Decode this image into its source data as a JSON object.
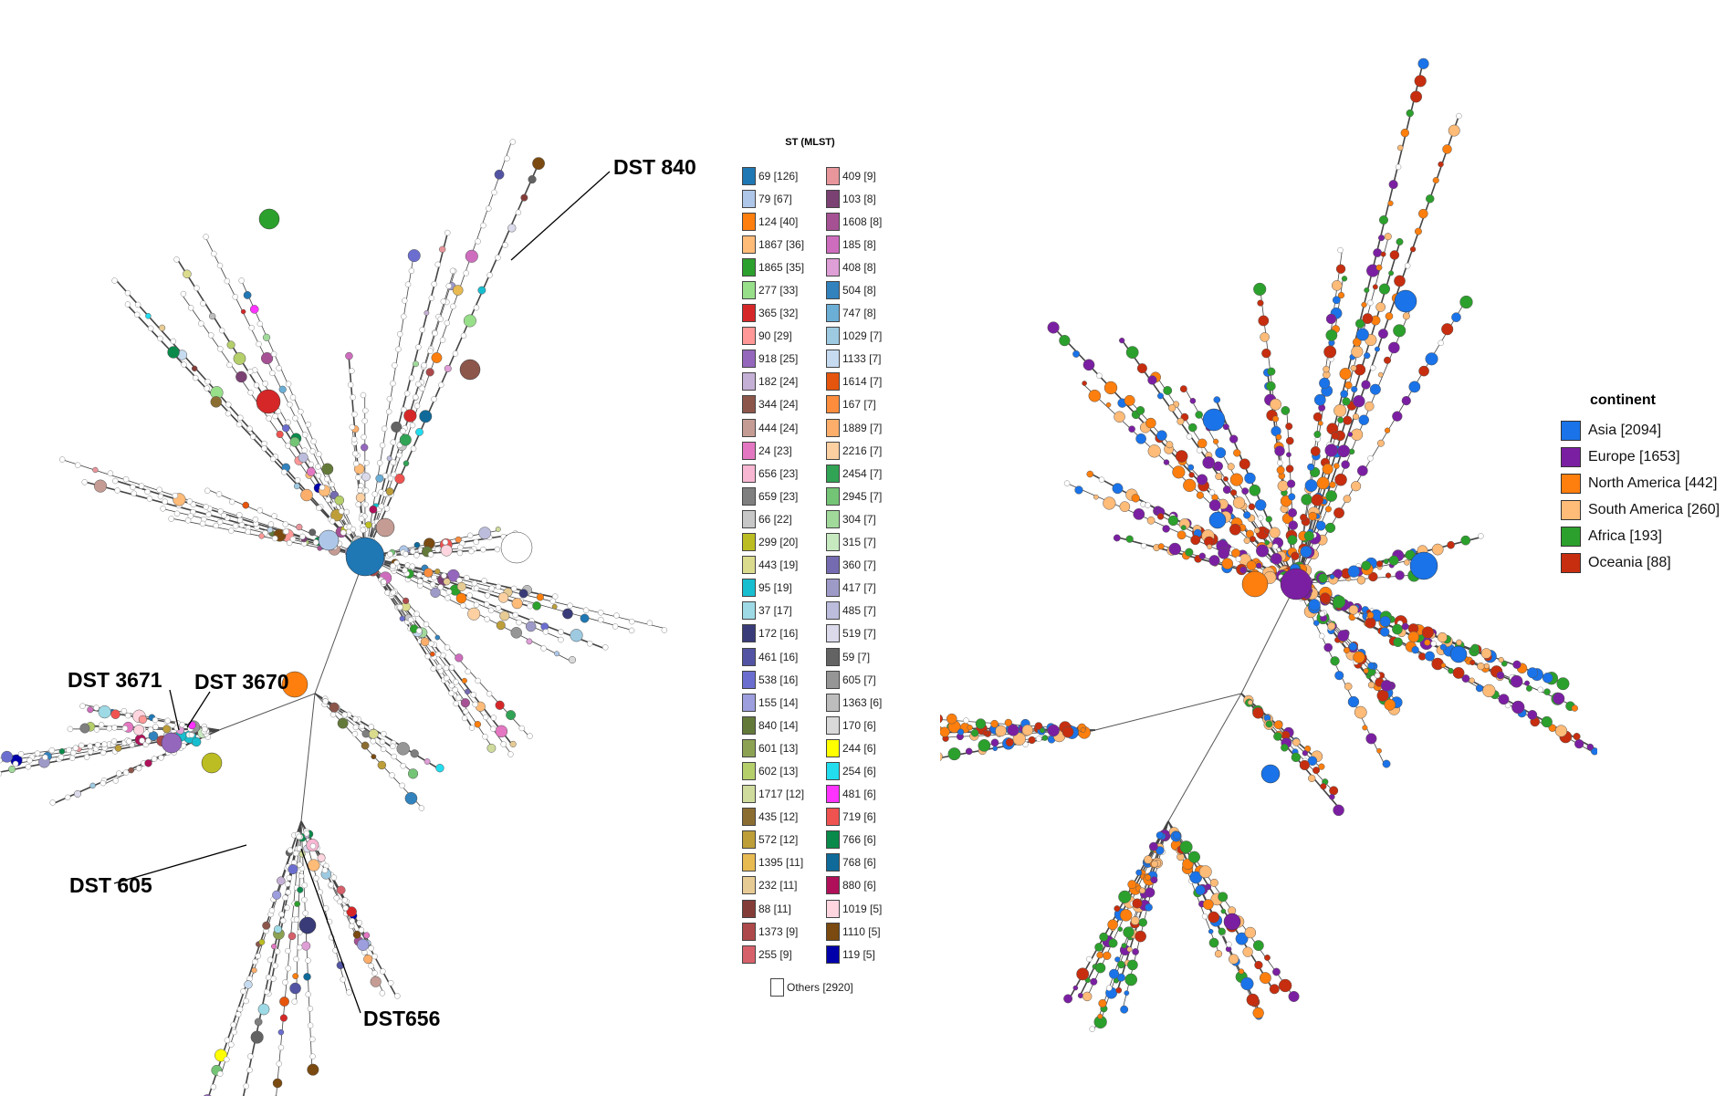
{
  "callouts": {
    "dst840": "DST 840",
    "dst3671": "DST 3671",
    "dst3670": "DST 3670",
    "dst605": "DST 605",
    "dst656": "DST656"
  },
  "st_legend": {
    "title": "ST (MLST)",
    "col1": [
      {
        "label": "69 [126]",
        "color": "#1f77b4"
      },
      {
        "label": "79 [67]",
        "color": "#aec7e8"
      },
      {
        "label": "124 [40]",
        "color": "#ff7f0e"
      },
      {
        "label": "1867 [36]",
        "color": "#ffbb78"
      },
      {
        "label": "1865 [35]",
        "color": "#2ca02c"
      },
      {
        "label": "277 [33]",
        "color": "#98df8a"
      },
      {
        "label": "365 [32]",
        "color": "#d62728"
      },
      {
        "label": "90 [29]",
        "color": "#ff9896"
      },
      {
        "label": "918 [25]",
        "color": "#9467bd"
      },
      {
        "label": "182 [24]",
        "color": "#c5b0d5"
      },
      {
        "label": "344 [24]",
        "color": "#8c564b"
      },
      {
        "label": "444 [24]",
        "color": "#c49c94"
      },
      {
        "label": "24 [23]",
        "color": "#e377c2"
      },
      {
        "label": "656 [23]",
        "color": "#f7b6d2"
      },
      {
        "label": "659 [23]",
        "color": "#7f7f7f"
      },
      {
        "label": "66 [22]",
        "color": "#c7c7c7"
      },
      {
        "label": "299 [20]",
        "color": "#bcbd22"
      },
      {
        "label": "443 [19]",
        "color": "#dbdb8d"
      },
      {
        "label": "95 [19]",
        "color": "#17becf"
      },
      {
        "label": "37 [17]",
        "color": "#9edae5"
      },
      {
        "label": "172 [16]",
        "color": "#393b79"
      },
      {
        "label": "461 [16]",
        "color": "#5254a3"
      },
      {
        "label": "538 [16]",
        "color": "#6b6ecf"
      },
      {
        "label": "155 [14]",
        "color": "#9c9ede"
      },
      {
        "label": "840 [14]",
        "color": "#637939"
      },
      {
        "label": "601 [13]",
        "color": "#8ca252"
      },
      {
        "label": "602 [13]",
        "color": "#b5cf6b"
      },
      {
        "label": "1717 [12]",
        "color": "#cedb9c"
      },
      {
        "label": "435 [12]",
        "color": "#8c6d31"
      },
      {
        "label": "572 [12]",
        "color": "#bd9e39"
      },
      {
        "label": "1395 [11]",
        "color": "#e7ba52"
      },
      {
        "label": "232 [11]",
        "color": "#e7cb94"
      },
      {
        "label": "88 [11]",
        "color": "#843c39"
      },
      {
        "label": "1373 [9]",
        "color": "#ad494a"
      },
      {
        "label": "255 [9]",
        "color": "#d6616b"
      }
    ],
    "col2": [
      {
        "label": "409 [9]",
        "color": "#e7969c"
      },
      {
        "label": "103 [8]",
        "color": "#7b4173"
      },
      {
        "label": "1608 [8]",
        "color": "#a55194"
      },
      {
        "label": "185 [8]",
        "color": "#ce6dbd"
      },
      {
        "label": "408 [8]",
        "color": "#de9ed6"
      },
      {
        "label": "504 [8]",
        "color": "#3182bd"
      },
      {
        "label": "747 [8]",
        "color": "#6baed6"
      },
      {
        "label": "1029 [7]",
        "color": "#9ecae1"
      },
      {
        "label": "1133 [7]",
        "color": "#c6dbef"
      },
      {
        "label": "1614 [7]",
        "color": "#e6550d"
      },
      {
        "label": "167 [7]",
        "color": "#fd8d3c"
      },
      {
        "label": "1889 [7]",
        "color": "#fdae6b"
      },
      {
        "label": "2216 [7]",
        "color": "#fdd0a2"
      },
      {
        "label": "2454 [7]",
        "color": "#31a354"
      },
      {
        "label": "2945 [7]",
        "color": "#74c476"
      },
      {
        "label": "304 [7]",
        "color": "#a1d99b"
      },
      {
        "label": "315 [7]",
        "color": "#c7e9c0"
      },
      {
        "label": "360 [7]",
        "color": "#756bb1"
      },
      {
        "label": "417 [7]",
        "color": "#9e9ac8"
      },
      {
        "label": "485 [7]",
        "color": "#bcbddc"
      },
      {
        "label": "519 [7]",
        "color": "#dadaeb"
      },
      {
        "label": "59 [7]",
        "color": "#636363"
      },
      {
        "label": "605 [7]",
        "color": "#969696"
      },
      {
        "label": "1363 [6]",
        "color": "#bdbdbd"
      },
      {
        "label": "170 [6]",
        "color": "#d9d9d9"
      },
      {
        "label": "244 [6]",
        "color": "#ffff00"
      },
      {
        "label": "254 [6]",
        "color": "#22ddee"
      },
      {
        "label": "481 [6]",
        "color": "#ff33ff"
      },
      {
        "label": "719 [6]",
        "color": "#ef5350"
      },
      {
        "label": "766 [6]",
        "color": "#0a8a4a"
      },
      {
        "label": "768 [6]",
        "color": "#0f6a99"
      },
      {
        "label": "880 [6]",
        "color": "#b0105a"
      },
      {
        "label": "1019 [5]",
        "color": "#ffd6e0"
      },
      {
        "label": "1110 [5]",
        "color": "#7a4a10"
      },
      {
        "label": "119 [5]",
        "color": "#0000aa"
      }
    ],
    "others": "Others [2920]"
  },
  "continent_legend": {
    "title": "continent",
    "items": [
      {
        "label": "Asia [2094]",
        "color": "#1a73e8"
      },
      {
        "label": "Europe [1653]",
        "color": "#7b1fa2"
      },
      {
        "label": "North America [442]",
        "color": "#ff7f0e"
      },
      {
        "label": "South America [260]",
        "color": "#ffbb78"
      },
      {
        "label": "Africa [193]",
        "color": "#2ca02c"
      },
      {
        "label": "Oceania [88]",
        "color": "#c62e0f"
      }
    ]
  }
}
